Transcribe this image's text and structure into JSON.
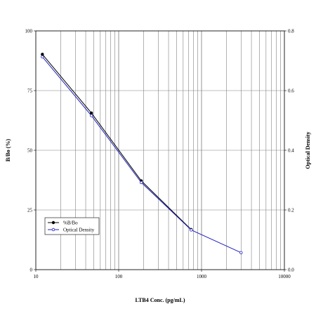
{
  "chart_data": {
    "type": "line",
    "x_scale": "log",
    "xlabel": "LTB4 Conc. (pg/mL)",
    "ylabel_left": "B/Bo (%)",
    "ylabel_right": "Optical Density",
    "xlim": [
      10,
      10000
    ],
    "ylim_left": [
      0,
      100
    ],
    "ylim_right": [
      0.0,
      0.8
    ],
    "x_ticks": [
      "10",
      "100",
      "1000",
      "10000"
    ],
    "y_ticks_left": [
      "0",
      "25",
      "50",
      "75",
      "100"
    ],
    "y_ticks_right": [
      "0.0",
      "0.2",
      "0.4",
      "0.6",
      "0.8"
    ],
    "grid": true,
    "legend_position": "bottom-left",
    "series": [
      {
        "name": "%B/Bo",
        "axis": "left",
        "color": "#000000",
        "marker": "filled-circle",
        "x": [
          12,
          46.9,
          187.5,
          750
        ],
        "y": [
          90.2,
          65.6,
          37.2,
          16.8
        ]
      },
      {
        "name": "Optical Density",
        "axis": "right",
        "color": "#1f1fbf",
        "marker": "open-circle",
        "x": [
          12,
          46.9,
          187.5,
          750,
          3000
        ],
        "y": [
          0.713,
          0.516,
          0.292,
          0.133,
          0.057
        ]
      }
    ]
  }
}
